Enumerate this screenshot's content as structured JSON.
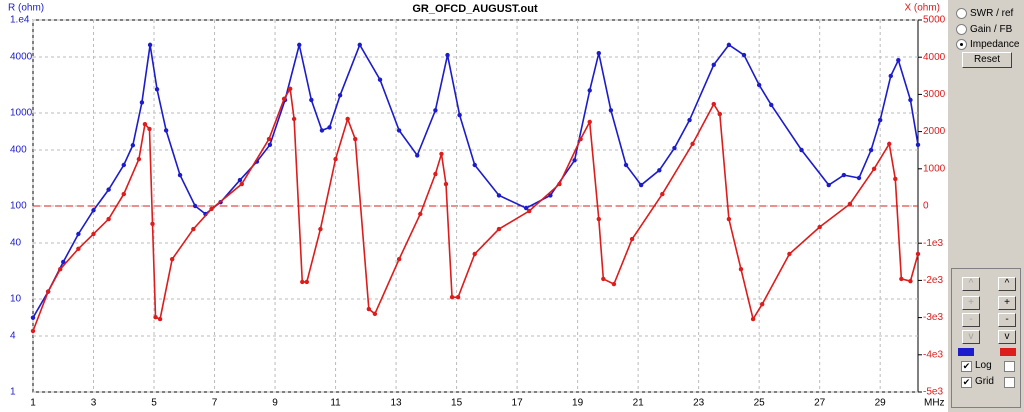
{
  "chart_data": {
    "type": "line",
    "title": "GR_OFCD_AUGUST.out",
    "y_label": "R (ohm)",
    "y2_label": "X (ohm)",
    "x_label": "MHz",
    "xlim": [
      1,
      30.25
    ],
    "xticks": [
      1,
      3,
      5,
      7,
      9,
      11,
      13,
      15,
      17,
      19,
      21,
      23,
      25,
      27,
      29
    ],
    "ylim": [
      1,
      10000
    ],
    "log_scale": true,
    "yticks": [
      {
        "value": 10000,
        "label": "1.e4"
      },
      4000,
      1000,
      400,
      100,
      40,
      10,
      4,
      1
    ],
    "y2lim": [
      -5000,
      5000
    ],
    "y2ticks": [
      5000,
      4000,
      3000,
      2000,
      1000,
      0,
      {
        "value": -1000,
        "label": "-1e3"
      },
      {
        "value": -2000,
        "label": "-2e3"
      },
      {
        "value": -3000,
        "label": "-3e3"
      },
      {
        "value": -4000,
        "label": "-4e3"
      },
      {
        "value": -5000,
        "label": "-5e3"
      }
    ],
    "grid": true,
    "series": [
      {
        "axis": "y",
        "color": "#1c1ccc",
        "x": [
          1,
          1.5,
          2,
          2.5,
          3,
          3.5,
          4,
          4.3,
          4.6,
          4.87,
          5.1,
          5.4,
          5.86,
          6.36,
          6.7,
          7.2,
          7.84,
          8.4,
          8.83,
          9.33,
          9.8,
          10.2,
          10.55,
          10.8,
          11.15,
          11.8,
          12.47,
          13.1,
          13.7,
          14.3,
          14.7,
          15.1,
          15.6,
          16.4,
          17.3,
          18.1,
          18.9,
          19.4,
          19.7,
          20.1,
          20.6,
          21.1,
          21.7,
          22.2,
          22.7,
          23.5,
          24.0,
          24.5,
          25.0,
          25.4,
          26.4,
          27.3,
          27.8,
          28.3,
          28.7,
          29.0,
          29.35,
          29.6,
          30.0,
          30.25
        ],
        "values": [
          6.3,
          12,
          25,
          50,
          90,
          150,
          276,
          450,
          1300,
          5400,
          1800,
          650,
          215,
          100,
          82,
          110,
          190,
          300,
          455,
          1380,
          5400,
          1380,
          650,
          700,
          1550,
          5400,
          2280,
          650,
          350,
          1070,
          4200,
          950,
          276,
          130,
          95,
          130,
          310,
          1750,
          4400,
          1070,
          276,
          168,
          242,
          420,
          840,
          3300,
          5400,
          4200,
          2000,
          1220,
          400,
          168,
          215,
          200,
          400,
          840,
          2500,
          3700,
          1380,
          455
        ]
      },
      {
        "axis": "y2",
        "color": "#dd1c1c",
        "x": [
          1,
          1.5,
          1.9,
          2.5,
          3,
          3.5,
          4,
          4.5,
          4.7,
          4.85,
          4.95,
          5.05,
          5.2,
          5.6,
          6.3,
          6.9,
          7.9,
          8.8,
          9.3,
          9.5,
          9.63,
          9.9,
          10.05,
          10.5,
          11,
          11.4,
          11.65,
          12.1,
          12.3,
          13.1,
          13.8,
          14.3,
          14.5,
          14.65,
          14.85,
          15.05,
          15.6,
          16.4,
          17.4,
          18.4,
          19.1,
          19.4,
          19.7,
          19.85,
          20.2,
          20.8,
          21.8,
          22.8,
          23.5,
          23.7,
          24.0,
          24.4,
          24.8,
          25.1,
          26.0,
          27.0,
          28.0,
          28.8,
          29.3,
          29.5,
          29.7,
          30.0,
          30.25
        ],
        "values": [
          -3360,
          -2300,
          -1700,
          -1150,
          -750,
          -350,
          320,
          1260,
          2200,
          2070,
          -480,
          -2990,
          -3040,
          -1430,
          -620,
          -80,
          590,
          1800,
          2880,
          3150,
          2340,
          -2040,
          -2040,
          -620,
          1260,
          2340,
          1800,
          -2770,
          -2900,
          -1430,
          -215,
          860,
          1400,
          590,
          -2450,
          -2450,
          -1290,
          -620,
          -135,
          590,
          1800,
          2260,
          -350,
          -1960,
          -2100,
          -890,
          320,
          1670,
          2740,
          2470,
          -350,
          -1700,
          -3040,
          -2640,
          -1290,
          -565,
          54,
          1000,
          1670,
          726,
          -1960,
          -2020,
          -1290
        ]
      }
    ]
  },
  "controls": {
    "modes": [
      "SWR / ref",
      "Gain / FB",
      "Impedance"
    ],
    "selected": 2,
    "reset": "Reset",
    "arrows": [
      "^",
      "+",
      "-",
      "v"
    ],
    "log": "Log",
    "grid": "Grid"
  }
}
